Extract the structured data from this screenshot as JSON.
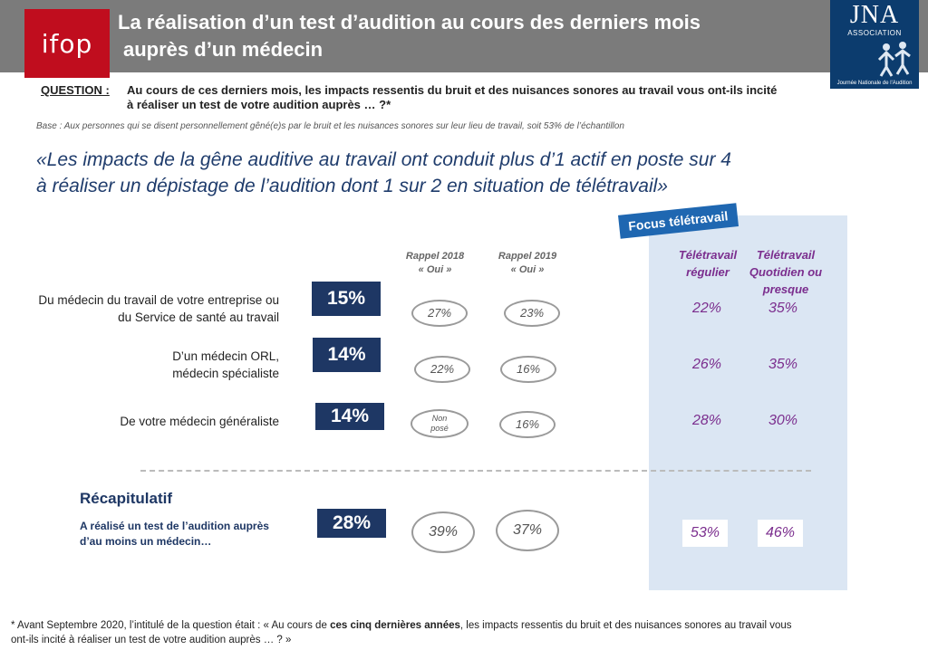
{
  "header": {
    "logo_text": "ifop",
    "title_line1": "La réalisation d’un test d’audition au cours des derniers mois",
    "title_line2": "auprès d’un médecin",
    "jna_logo": {
      "text": "JNA",
      "subtitle": "ASSOCIATION",
      "footer": "Journée Nationale de l'Audition"
    }
  },
  "question": {
    "label": "QUESTION :",
    "text_line1": "Au cours de ces derniers mois, les impacts ressentis du bruit et des nuisances sonores au travail vous ont-ils incité",
    "text_line2": "à réaliser un test de votre audition auprès … ?*"
  },
  "base_text": "Base : Aux personnes qui se disent personnellement gêné(e)s par le bruit et les nuisances sonores sur leur lieu de travail, soit 53% de l’échantillon",
  "quote": {
    "line1": "«Les impacts de la gêne auditive au travail ont conduit plus d’1 actif en poste sur 4",
    "line2": "à réaliser un dépistage de l’audition dont 1 sur 2 en situation de télétravail»"
  },
  "focus_label": "Focus télétravail",
  "chart_data": {
    "type": "table",
    "columns": {
      "rappel_2018": {
        "line1": "Rappel 2018",
        "line2": "« Oui »"
      },
      "rappel_2019": {
        "line1": "Rappel 2019",
        "line2": "« Oui »"
      },
      "tt_regulier": {
        "line1": "Télétravail",
        "line2": "régulier"
      },
      "tt_quotidien": {
        "line1": "Télétravail",
        "line2": "Quotidien ou",
        "line3": "presque"
      }
    },
    "rows": [
      {
        "label_line1": "Du médecin du travail de votre entreprise ou",
        "label_line2": "du Service de santé au travail",
        "value": 15,
        "value_label": "15%",
        "rappel_2018": "27%",
        "rappel_2019": "23%",
        "tt_regulier": "22%",
        "tt_quotidien": "35%"
      },
      {
        "label_line1": "D’un médecin ORL,",
        "label_line2": "médecin spécialiste",
        "value": 14,
        "value_label": "14%",
        "rappel_2018": "22%",
        "rappel_2019": "16%",
        "tt_regulier": "26%",
        "tt_quotidien": "35%"
      },
      {
        "label_line1": "De votre médecin généraliste",
        "value": 14,
        "value_label": "14%",
        "rappel_2018_line1": "Non",
        "rappel_2018_line2": "posé",
        "rappel_2019": "16%",
        "tt_regulier": "28%",
        "tt_quotidien": "30%"
      }
    ],
    "recap": {
      "title": "Récapitulatif",
      "label_line1": "A réalisé un test de l’audition auprès",
      "label_line2": "d’au moins un médecin…",
      "value": 28,
      "value_label": "28%",
      "rappel_2018": "39%",
      "rappel_2019": "37%",
      "tt_regulier": "53%",
      "tt_quotidien": "46%"
    }
  },
  "footnote": {
    "part1": "* Avant Septembre 2020, l’intitulé de la question était : « Au cours de ",
    "bold": "ces cinq dernières années",
    "part2": ", les impacts ressentis du bruit et des nuisances sonores au travail vous",
    "line2": "ont-ils incité à réaliser un test de votre audition auprès … ? »"
  },
  "colors": {
    "bar": "#1e3764",
    "accent_red": "#c00d1e",
    "teletravail": "#7b2e8e",
    "focus_panel": "#dbe6f3"
  }
}
